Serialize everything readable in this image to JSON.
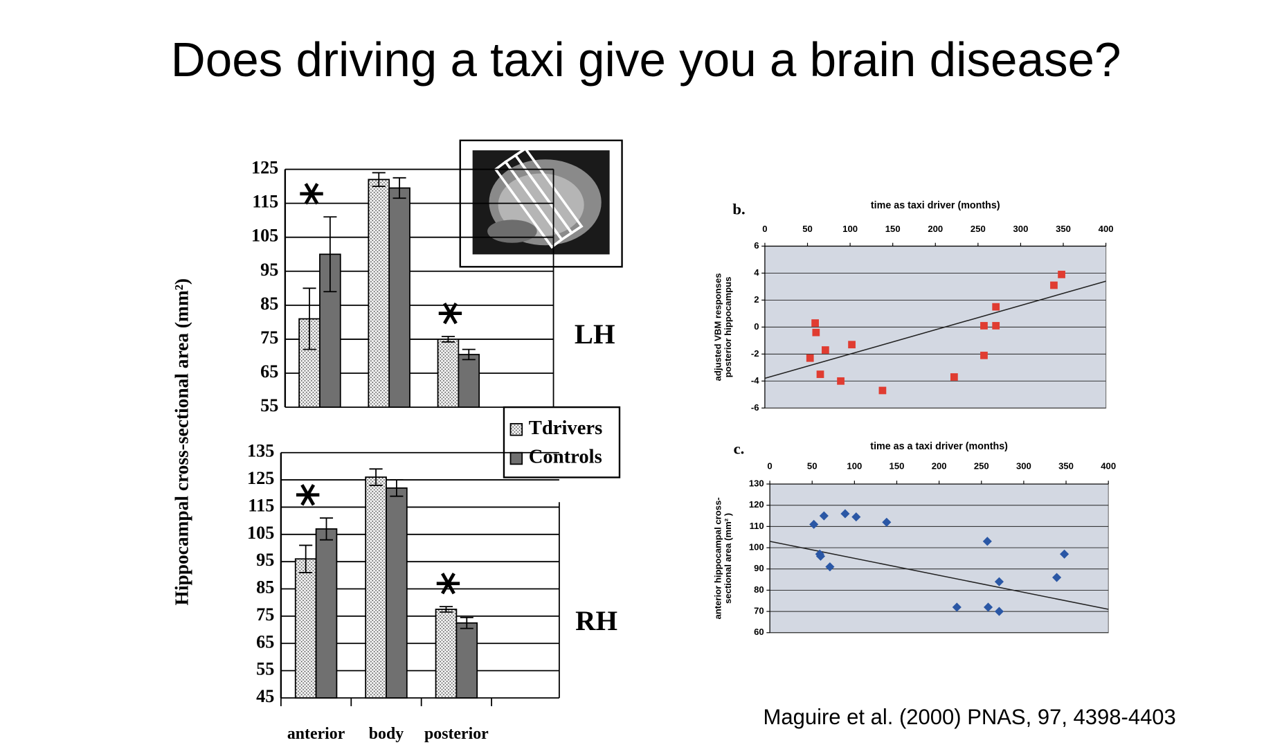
{
  "title": "Does driving a taxi give you a brain disease?",
  "citation": "Maguire et al. (2000) PNAS, 97, 4398-4403",
  "chart_data": [
    {
      "type": "bar",
      "label": "LH",
      "ylabel": "Hippocampal cross-sectional area (mm²)",
      "categories": [
        null,
        null,
        null
      ],
      "series": [
        {
          "name": "Tdrivers",
          "color": "#f2f2f2",
          "pattern": "dotted",
          "values": [
            81,
            122,
            75
          ],
          "errors": [
            9,
            2,
            0.8
          ]
        },
        {
          "name": "Controls",
          "color": "#707070",
          "values": [
            100,
            119.5,
            70.5
          ],
          "errors": [
            11,
            3,
            1.5
          ]
        }
      ],
      "significant": [
        true,
        false,
        true
      ],
      "ylim": [
        55,
        125
      ],
      "yticks": [
        55,
        65,
        75,
        85,
        95,
        105,
        115,
        125
      ],
      "grid": true
    },
    {
      "type": "bar",
      "label": "RH",
      "categories": [
        "anterior",
        "body",
        "posterior"
      ],
      "series": [
        {
          "color": "#f2f2f2",
          "pattern": "dotted",
          "values": [
            96,
            126,
            77.5
          ],
          "errors": [
            5,
            3,
            1
          ]
        },
        {
          "color": "#707070",
          "values": [
            107,
            122,
            72.5
          ],
          "errors": [
            4,
            3,
            2
          ]
        }
      ],
      "significant": [
        true,
        false,
        true
      ],
      "ylim": [
        45,
        135
      ],
      "yticks": [
        45,
        55,
        65,
        75,
        85,
        95,
        105,
        115,
        125,
        135
      ],
      "grid": true
    },
    {
      "type": "scatter",
      "label": "b.",
      "xlabel": "time as taxi driver (months)",
      "ylabel": [
        "adjusted VBM responses",
        "posterior hippocampus"
      ],
      "marker": "square",
      "color": "#e03c31",
      "x": [
        53,
        59,
        60,
        65,
        71,
        89,
        102,
        138,
        222,
        257,
        257,
        271,
        271,
        339,
        348
      ],
      "values": [
        -2.3,
        0.3,
        -0.4,
        -3.5,
        -1.7,
        -4,
        -1.3,
        -4.7,
        -3.7,
        0.1,
        -2.1,
        1.5,
        0.1,
        3.1,
        3.9
      ],
      "trendline": {
        "x": [
          0,
          400
        ],
        "y": [
          -3.8,
          3.4
        ]
      },
      "xlim": [
        0,
        400
      ],
      "xticks": [
        0,
        50,
        100,
        150,
        200,
        250,
        300,
        350,
        400
      ],
      "ylim": [
        -6,
        6
      ],
      "yticks": [
        -6,
        -4,
        -2,
        0,
        2,
        4,
        6
      ],
      "grid": true
    },
    {
      "type": "scatter",
      "label": "c.",
      "xlabel": "time as a taxi driver (months)",
      "ylabel": [
        "anterior hippocampal cross-",
        "sectional area (mm² )"
      ],
      "marker": "diamond",
      "color": "#2a57a5",
      "x": [
        52,
        64,
        59,
        60,
        71,
        89,
        102,
        138,
        221,
        257,
        258,
        271,
        271,
        339,
        348
      ],
      "values": [
        111,
        115,
        97,
        96,
        91,
        116,
        114.5,
        112,
        72,
        103,
        72,
        84,
        70,
        86,
        97
      ],
      "trendline": {
        "x": [
          0,
          400
        ],
        "y": [
          103,
          71
        ]
      },
      "xlim": [
        0,
        400
      ],
      "xticks": [
        0,
        50,
        100,
        150,
        200,
        250,
        300,
        350,
        400
      ],
      "ylim": [
        60,
        130
      ],
      "yticks": [
        60,
        70,
        80,
        90,
        100,
        110,
        120,
        130
      ],
      "grid": true
    }
  ]
}
